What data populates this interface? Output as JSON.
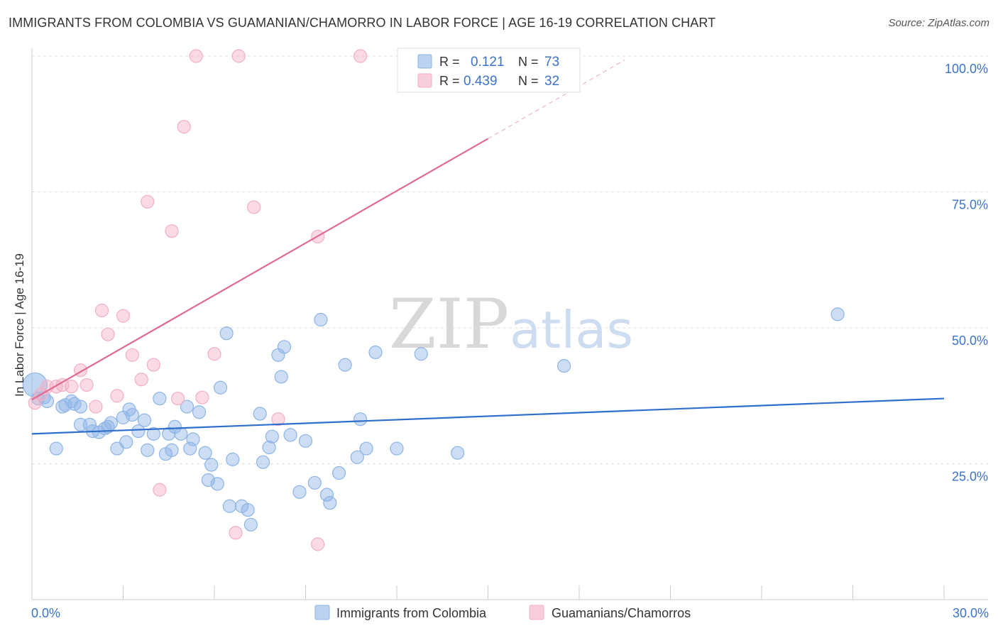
{
  "header": {
    "title": "IMMIGRANTS FROM COLOMBIA VS GUAMANIAN/CHAMORRO IN LABOR FORCE | AGE 16-19 CORRELATION CHART",
    "source": "Source: ZipAtlas.com"
  },
  "watermark": {
    "part1": "ZIP",
    "part2": "atlas"
  },
  "chart_data": {
    "type": "scatter",
    "ylabel": "In Labor Force | Age 16-19",
    "xlim": [
      0,
      30
    ],
    "ylim": [
      0,
      100
    ],
    "x_ticks": [
      {
        "value": 0,
        "label": "0.0%"
      },
      {
        "value": 30,
        "label": "30.0%"
      }
    ],
    "y_ticks": [
      {
        "value": 25,
        "label": "25.0%"
      },
      {
        "value": 50,
        "label": "50.0%"
      },
      {
        "value": 75,
        "label": "75.0%"
      },
      {
        "value": 100,
        "label": "100.0%"
      }
    ],
    "grid": true,
    "legend_position": "top-center",
    "legend": {
      "r_label": "R =",
      "n_label": "N ="
    },
    "series": [
      {
        "name": "Immigrants from Colombia",
        "color": "#8db4e6",
        "line_color": "#2f6fcc",
        "r": "0.121",
        "n": "73",
        "trend": {
          "x": [
            0,
            30
          ],
          "y": [
            30.5,
            37.0
          ]
        },
        "points": [
          [
            0.1,
            39.5
          ],
          [
            0.2,
            37
          ],
          [
            0.4,
            37.2
          ],
          [
            0.5,
            36.5
          ],
          [
            0.8,
            27.8
          ],
          [
            1.0,
            35.5
          ],
          [
            1.1,
            35.8
          ],
          [
            1.3,
            36.5
          ],
          [
            1.4,
            36
          ],
          [
            1.6,
            35.5
          ],
          [
            1.6,
            32.2
          ],
          [
            1.9,
            32.2
          ],
          [
            2.0,
            31
          ],
          [
            2.2,
            30.8
          ],
          [
            2.4,
            31.5
          ],
          [
            2.5,
            31.8
          ],
          [
            2.6,
            32.5
          ],
          [
            2.8,
            27.8
          ],
          [
            3.0,
            33.5
          ],
          [
            3.1,
            29
          ],
          [
            3.2,
            35
          ],
          [
            3.3,
            34
          ],
          [
            3.5,
            31
          ],
          [
            3.7,
            33
          ],
          [
            3.8,
            27.5
          ],
          [
            4.0,
            30.5
          ],
          [
            4.2,
            37
          ],
          [
            4.4,
            26.8
          ],
          [
            4.5,
            30.5
          ],
          [
            4.6,
            27.5
          ],
          [
            4.7,
            31.8
          ],
          [
            4.9,
            30.5
          ],
          [
            5.1,
            35.5
          ],
          [
            5.2,
            27.8
          ],
          [
            5.3,
            29.5
          ],
          [
            5.5,
            34.5
          ],
          [
            5.7,
            27
          ],
          [
            5.8,
            22
          ],
          [
            5.9,
            24.8
          ],
          [
            6.1,
            21.3
          ],
          [
            6.2,
            39
          ],
          [
            6.4,
            49
          ],
          [
            6.5,
            17.2
          ],
          [
            6.6,
            25.8
          ],
          [
            6.9,
            17.2
          ],
          [
            7.1,
            16.5
          ],
          [
            7.2,
            13.8
          ],
          [
            7.5,
            34.2
          ],
          [
            7.6,
            25.3
          ],
          [
            7.8,
            28
          ],
          [
            7.9,
            30
          ],
          [
            8.1,
            45
          ],
          [
            8.2,
            41
          ],
          [
            8.3,
            46.5
          ],
          [
            8.5,
            30.3
          ],
          [
            8.8,
            19.8
          ],
          [
            9.0,
            29.2
          ],
          [
            9.3,
            21.5
          ],
          [
            9.5,
            51.5
          ],
          [
            9.7,
            19.3
          ],
          [
            9.8,
            17.8
          ],
          [
            10.1,
            23.3
          ],
          [
            10.3,
            43.2
          ],
          [
            10.7,
            26.2
          ],
          [
            10.8,
            33.2
          ],
          [
            11.0,
            27.8
          ],
          [
            11.3,
            45.5
          ],
          [
            12.0,
            27.8
          ],
          [
            12.8,
            45.2
          ],
          [
            14.0,
            27
          ],
          [
            17.5,
            43
          ],
          [
            26.5,
            52.5
          ]
        ]
      },
      {
        "name": "Guamanians/Chamorros",
        "color": "#f3aec4",
        "line_color": "#e06a93",
        "r": "0.439",
        "n": "32",
        "trend": {
          "x": [
            0,
            15
          ],
          "y": [
            36.8,
            84.8
          ]
        },
        "trend_dashed": {
          "x": [
            15,
            19.5
          ],
          "y": [
            84.8,
            99.3
          ]
        },
        "points": [
          [
            0.1,
            36.2
          ],
          [
            0.3,
            37.8
          ],
          [
            0.5,
            39.2
          ],
          [
            0.8,
            39.2
          ],
          [
            1.0,
            39.5
          ],
          [
            1.3,
            39.2
          ],
          [
            1.6,
            42.2
          ],
          [
            1.8,
            39.5
          ],
          [
            2.1,
            35.5
          ],
          [
            2.3,
            53.2
          ],
          [
            2.5,
            48.8
          ],
          [
            2.8,
            37.5
          ],
          [
            3.0,
            52.2
          ],
          [
            3.3,
            45
          ],
          [
            3.6,
            40.5
          ],
          [
            3.8,
            73.2
          ],
          [
            4.0,
            43.2
          ],
          [
            4.2,
            20.2
          ],
          [
            4.6,
            67.8
          ],
          [
            4.8,
            37
          ],
          [
            5.0,
            87
          ],
          [
            5.4,
            100
          ],
          [
            5.6,
            37.2
          ],
          [
            6.0,
            45.2
          ],
          [
            6.7,
            12.3
          ],
          [
            6.8,
            100
          ],
          [
            7.3,
            72.2
          ],
          [
            8.1,
            33.2
          ],
          [
            9.4,
            66.8
          ],
          [
            9.4,
            10.2
          ],
          [
            10.8,
            100
          ]
        ]
      }
    ]
  }
}
